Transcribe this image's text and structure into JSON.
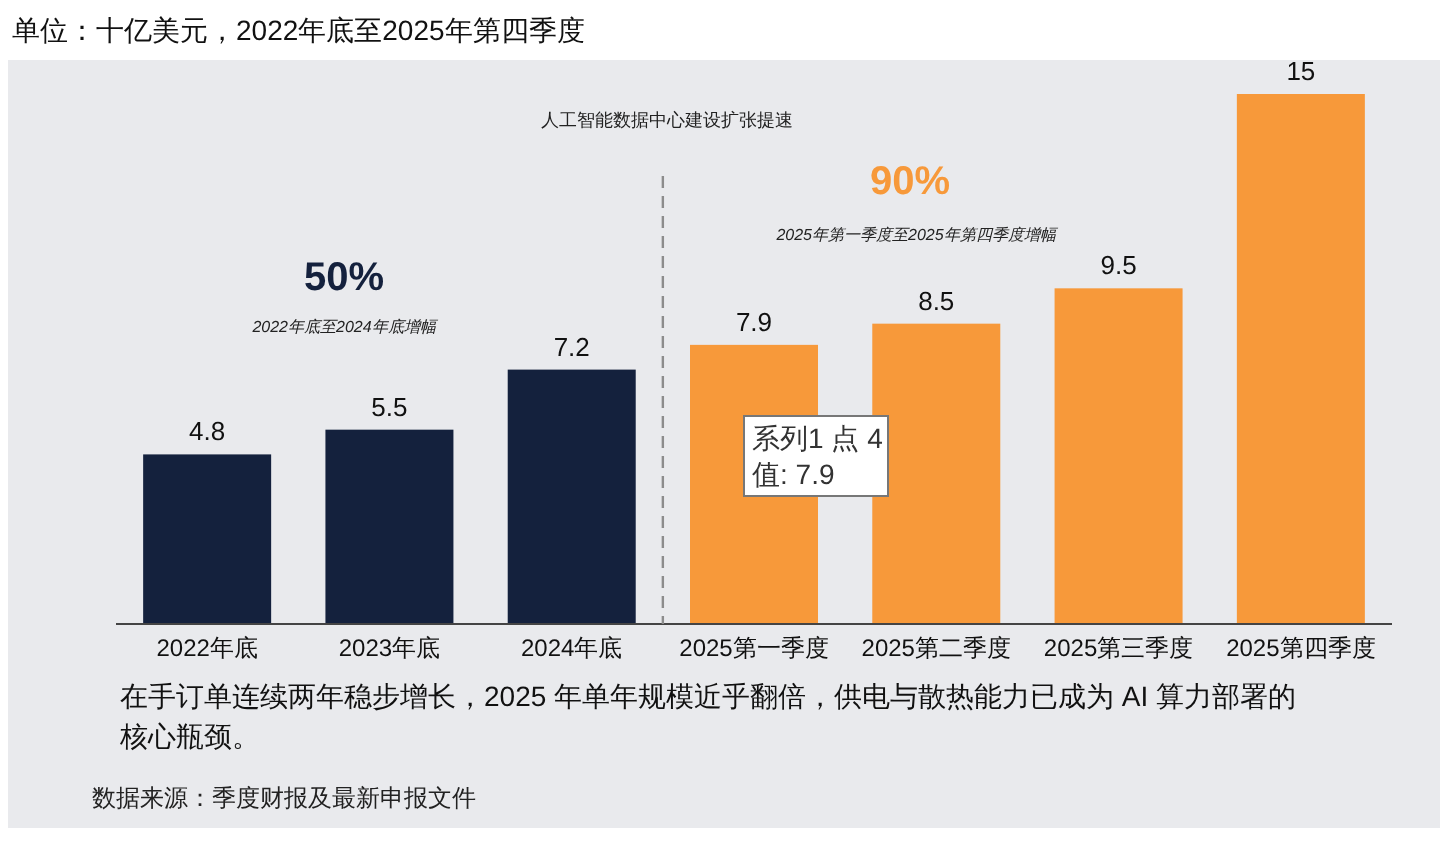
{
  "chart_data": {
    "type": "bar",
    "title": "单位：十亿美元，2022年底至2025年第四季度",
    "categories": [
      "2022年底",
      "2023年底",
      "2024年底",
      "2025第一季度",
      "2025第二季度",
      "2025第三季度",
      "2025第四季度"
    ],
    "values": [
      4.8,
      5.5,
      7.2,
      7.9,
      8.5,
      9.5,
      15
    ],
    "colors": [
      "#14213d",
      "#14213d",
      "#14213d",
      "#f7993a",
      "#f7993a",
      "#f7993a",
      "#f7993a"
    ],
    "data_labels": true,
    "annotations": [
      "人工智能数据中心建设扩张提速",
      "50%",
      "2022年底至2024年底增幅",
      "90%",
      "2025年第一季度至2025年第四季度增幅",
      "系列1 点 4\n值: 7.9",
      "在手订单连续两年稳步增长，2025 年单年规模近乎翻倍，供电与散热能力已成为 AI 算力部署的核心瓶颈。",
      "数据来源：季度财报及最新申报文件"
    ]
  }
}
